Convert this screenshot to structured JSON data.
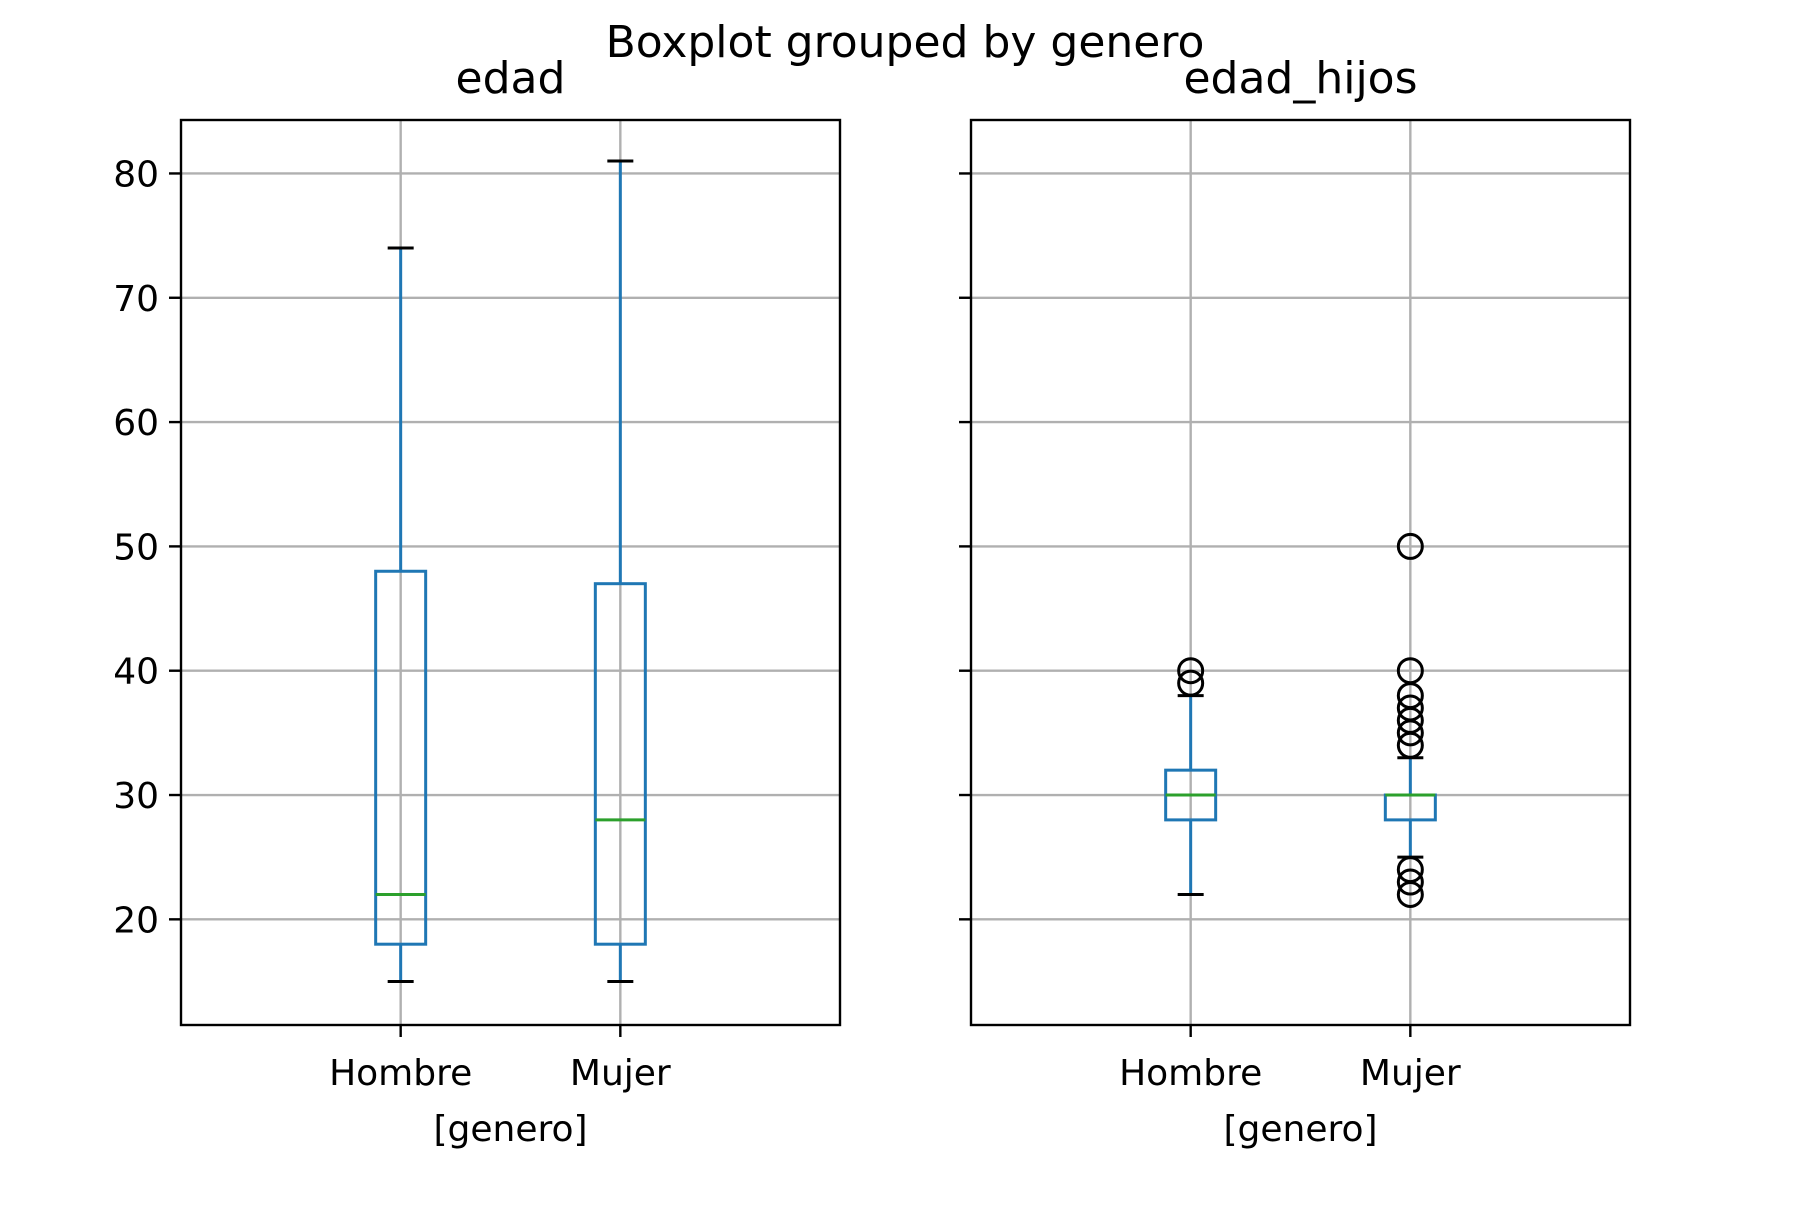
{
  "figure": {
    "suptitle": "Boxplot grouped by genero"
  },
  "colors": {
    "box": "#1f77b4",
    "median": "#2ca02c",
    "whisker_cap": "#000000",
    "grid": "#b0b0b0",
    "flier": "#000000"
  },
  "chart_data": [
    {
      "type": "box",
      "title": "edad",
      "xlabel": "[genero]",
      "ylabel": "",
      "categories": [
        "Hombre",
        "Mujer"
      ],
      "ylim": [
        11.5,
        84.3
      ],
      "yticks": [
        20,
        30,
        40,
        50,
        60,
        70,
        80
      ],
      "grid": true,
      "boxes": [
        {
          "category": "Hombre",
          "whislo": 15,
          "q1": 18,
          "med": 22,
          "q3": 48,
          "whishi": 74,
          "fliers": []
        },
        {
          "category": "Mujer",
          "whislo": 15,
          "q1": 18,
          "med": 28,
          "q3": 47,
          "whishi": 81,
          "fliers": []
        }
      ]
    },
    {
      "type": "box",
      "title": "edad_hijos",
      "xlabel": "[genero]",
      "ylabel": "",
      "categories": [
        "Hombre",
        "Mujer"
      ],
      "ylim": [
        11.5,
        84.3
      ],
      "yticks": [
        20,
        30,
        40,
        50,
        60,
        70,
        80
      ],
      "show_ytick_labels": false,
      "grid": true,
      "boxes": [
        {
          "category": "Hombre",
          "whislo": 22,
          "q1": 28,
          "med": 30,
          "q3": 32,
          "whishi": 38,
          "fliers": [
            39,
            40
          ]
        },
        {
          "category": "Mujer",
          "whislo": 25,
          "q1": 28,
          "med": 30,
          "q3": 30,
          "whishi": 33,
          "fliers": [
            22,
            23,
            24,
            34,
            35,
            36,
            37,
            38,
            40,
            50
          ]
        }
      ]
    }
  ]
}
